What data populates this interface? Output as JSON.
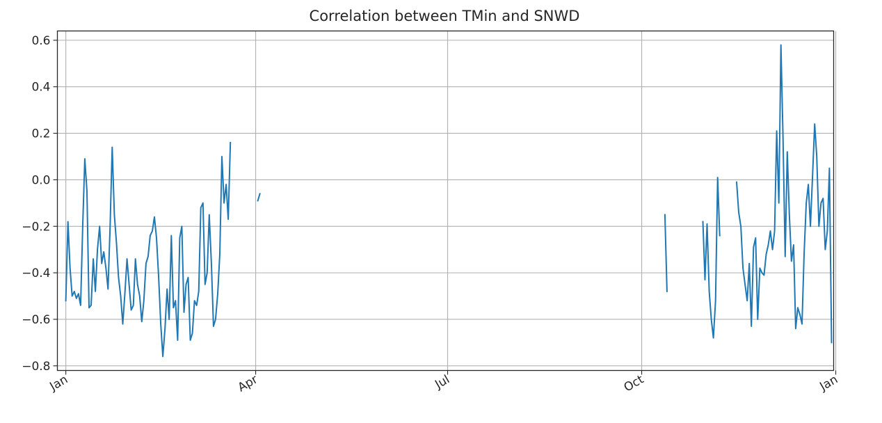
{
  "chart_data": {
    "type": "line",
    "title": "Correlation between TMin and SNWD",
    "xlabel": "",
    "ylabel": "",
    "x_axis": {
      "type": "date",
      "range": [
        "2000-12-28",
        "2001-12-31"
      ],
      "ticks": [
        {
          "date": "2001-01-01",
          "label": "Jan"
        },
        {
          "date": "2001-04-01",
          "label": "Apr"
        },
        {
          "date": "2001-07-01",
          "label": "Jul"
        },
        {
          "date": "2001-10-01",
          "label": "Oct"
        },
        {
          "date": "2002-01-01",
          "label": "Jan"
        }
      ]
    },
    "ylim": [
      -0.82,
      0.64
    ],
    "yticks": [
      -0.8,
      -0.6,
      -0.4,
      -0.2,
      0.0,
      0.2,
      0.4,
      0.6
    ],
    "ytick_labels": [
      "−0.8",
      "−0.6",
      "−0.4",
      "−0.2",
      "0.0",
      "0.2",
      "0.4",
      "0.6"
    ],
    "grid": true,
    "color": "#1f77b4",
    "series": [
      {
        "segments": [
          [
            [
              "2001-01-01",
              -0.52
            ],
            [
              "2001-01-02",
              -0.18
            ],
            [
              "2001-01-03",
              -0.38
            ],
            [
              "2001-01-04",
              -0.5
            ],
            [
              "2001-01-05",
              -0.48
            ],
            [
              "2001-01-06",
              -0.51
            ],
            [
              "2001-01-07",
              -0.49
            ],
            [
              "2001-01-08",
              -0.54
            ],
            [
              "2001-01-09",
              -0.2
            ],
            [
              "2001-01-10",
              0.09
            ],
            [
              "2001-01-11",
              -0.05
            ],
            [
              "2001-01-12",
              -0.55
            ],
            [
              "2001-01-13",
              -0.54
            ],
            [
              "2001-01-14",
              -0.34
            ],
            [
              "2001-01-15",
              -0.48
            ],
            [
              "2001-01-16",
              -0.3
            ],
            [
              "2001-01-17",
              -0.2
            ],
            [
              "2001-01-18",
              -0.36
            ],
            [
              "2001-01-19",
              -0.31
            ],
            [
              "2001-01-20",
              -0.38
            ],
            [
              "2001-01-21",
              -0.47
            ],
            [
              "2001-01-22",
              -0.2
            ],
            [
              "2001-01-23",
              0.14
            ],
            [
              "2001-01-24",
              -0.15
            ],
            [
              "2001-01-25",
              -0.27
            ],
            [
              "2001-01-26",
              -0.42
            ],
            [
              "2001-01-27",
              -0.5
            ],
            [
              "2001-01-28",
              -0.62
            ],
            [
              "2001-01-29",
              -0.49
            ],
            [
              "2001-01-30",
              -0.34
            ],
            [
              "2001-01-31",
              -0.45
            ],
            [
              "2001-02-01",
              -0.56
            ],
            [
              "2001-02-02",
              -0.54
            ],
            [
              "2001-02-03",
              -0.34
            ],
            [
              "2001-02-04",
              -0.45
            ],
            [
              "2001-02-05",
              -0.5
            ],
            [
              "2001-02-06",
              -0.61
            ],
            [
              "2001-02-07",
              -0.52
            ],
            [
              "2001-02-08",
              -0.36
            ],
            [
              "2001-02-09",
              -0.33
            ],
            [
              "2001-02-10",
              -0.24
            ],
            [
              "2001-02-11",
              -0.22
            ],
            [
              "2001-02-12",
              -0.16
            ],
            [
              "2001-02-13",
              -0.25
            ],
            [
              "2001-02-14",
              -0.42
            ],
            [
              "2001-02-15",
              -0.62
            ],
            [
              "2001-02-16",
              -0.76
            ],
            [
              "2001-02-17",
              -0.64
            ],
            [
              "2001-02-18",
              -0.47
            ],
            [
              "2001-02-19",
              -0.6
            ],
            [
              "2001-02-20",
              -0.24
            ],
            [
              "2001-02-21",
              -0.55
            ],
            [
              "2001-02-22",
              -0.52
            ],
            [
              "2001-02-23",
              -0.69
            ],
            [
              "2001-02-24",
              -0.25
            ],
            [
              "2001-02-25",
              -0.2
            ],
            [
              "2001-02-26",
              -0.57
            ],
            [
              "2001-02-27",
              -0.45
            ],
            [
              "2001-02-28",
              -0.42
            ],
            [
              "2001-03-01",
              -0.69
            ],
            [
              "2001-03-02",
              -0.66
            ],
            [
              "2001-03-03",
              -0.52
            ],
            [
              "2001-03-04",
              -0.54
            ],
            [
              "2001-03-05",
              -0.48
            ],
            [
              "2001-03-06",
              -0.12
            ],
            [
              "2001-03-07",
              -0.1
            ],
            [
              "2001-03-08",
              -0.45
            ],
            [
              "2001-03-09",
              -0.4
            ],
            [
              "2001-03-10",
              -0.15
            ],
            [
              "2001-03-11",
              -0.36
            ],
            [
              "2001-03-12",
              -0.63
            ],
            [
              "2001-03-13",
              -0.6
            ],
            [
              "2001-03-14",
              -0.49
            ],
            [
              "2001-03-15",
              -0.32
            ],
            [
              "2001-03-16",
              0.1
            ],
            [
              "2001-03-17",
              -0.1
            ],
            [
              "2001-03-18",
              -0.02
            ],
            [
              "2001-03-19",
              -0.17
            ],
            [
              "2001-03-20",
              0.16
            ]
          ],
          [
            [
              "2001-04-02",
              -0.09
            ],
            [
              "2001-04-03",
              -0.06
            ]
          ],
          [
            [
              "2001-10-12",
              -0.15
            ],
            [
              "2001-10-13",
              -0.48
            ]
          ],
          [
            [
              "2001-10-30",
              -0.18
            ],
            [
              "2001-10-31",
              -0.43
            ],
            [
              "2001-11-01",
              -0.19
            ],
            [
              "2001-11-02",
              -0.48
            ],
            [
              "2001-11-03",
              -0.6
            ],
            [
              "2001-11-04",
              -0.68
            ],
            [
              "2001-11-05",
              -0.52
            ],
            [
              "2001-11-06",
              0.01
            ],
            [
              "2001-11-07",
              -0.24
            ]
          ],
          [
            [
              "2001-11-15",
              -0.01
            ],
            [
              "2001-11-16",
              -0.14
            ],
            [
              "2001-11-17",
              -0.2
            ],
            [
              "2001-11-18",
              -0.38
            ],
            [
              "2001-11-19",
              -0.45
            ],
            [
              "2001-11-20",
              -0.52
            ],
            [
              "2001-11-21",
              -0.36
            ],
            [
              "2001-11-22",
              -0.63
            ],
            [
              "2001-11-23",
              -0.29
            ],
            [
              "2001-11-24",
              -0.25
            ],
            [
              "2001-11-25",
              -0.6
            ],
            [
              "2001-11-26",
              -0.38
            ],
            [
              "2001-11-27",
              -0.4
            ],
            [
              "2001-11-28",
              -0.41
            ],
            [
              "2001-11-29",
              -0.32
            ],
            [
              "2001-11-30",
              -0.28
            ],
            [
              "2001-12-01",
              -0.22
            ],
            [
              "2001-12-02",
              -0.3
            ],
            [
              "2001-12-03",
              -0.22
            ],
            [
              "2001-12-04",
              0.21
            ],
            [
              "2001-12-05",
              -0.1
            ],
            [
              "2001-12-06",
              0.58
            ],
            [
              "2001-12-07",
              0.18
            ],
            [
              "2001-12-08",
              -0.33
            ],
            [
              "2001-12-09",
              0.12
            ],
            [
              "2001-12-10",
              -0.15
            ],
            [
              "2001-12-11",
              -0.35
            ],
            [
              "2001-12-12",
              -0.28
            ],
            [
              "2001-12-13",
              -0.64
            ],
            [
              "2001-12-14",
              -0.55
            ],
            [
              "2001-12-15",
              -0.58
            ],
            [
              "2001-12-16",
              -0.62
            ],
            [
              "2001-12-17",
              -0.32
            ],
            [
              "2001-12-18",
              -0.1
            ],
            [
              "2001-12-19",
              -0.02
            ],
            [
              "2001-12-20",
              -0.2
            ],
            [
              "2001-12-21",
              0.02
            ],
            [
              "2001-12-22",
              0.24
            ],
            [
              "2001-12-23",
              0.1
            ],
            [
              "2001-12-24",
              -0.2
            ],
            [
              "2001-12-25",
              -0.1
            ],
            [
              "2001-12-26",
              -0.08
            ],
            [
              "2001-12-27",
              -0.3
            ],
            [
              "2001-12-28",
              -0.22
            ],
            [
              "2001-12-29",
              0.05
            ],
            [
              "2001-12-30",
              -0.7
            ]
          ]
        ]
      }
    ]
  }
}
